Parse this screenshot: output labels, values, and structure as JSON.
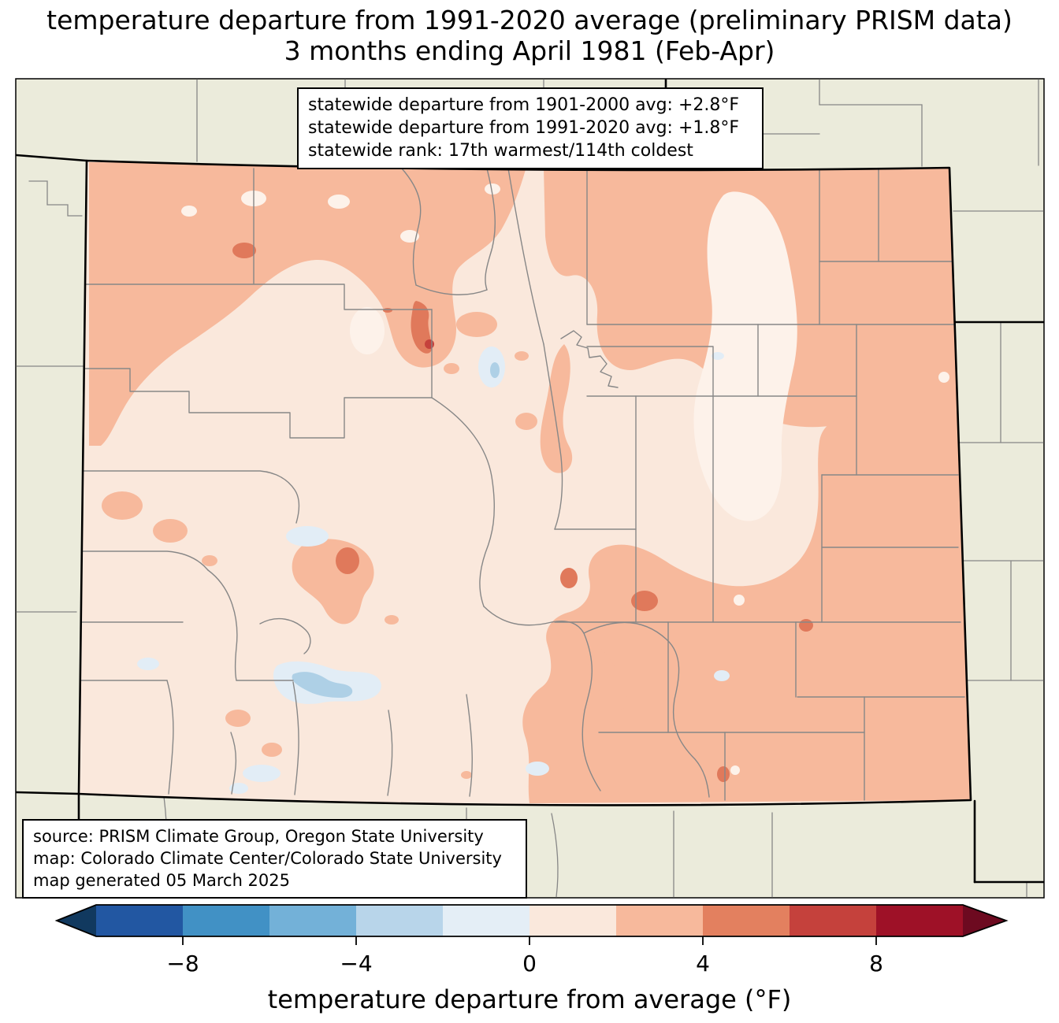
{
  "title": {
    "line1": "temperature departure from 1991-2020 average (preliminary PRISM data)",
    "line2": "3 months ending April 1981 (Feb-Apr)"
  },
  "stats_box": {
    "line1": "statewide departure from 1901-2000 avg: +2.8°F",
    "line2": "statewide departure from 1991-2020 avg: +1.8°F",
    "line3": "statewide rank: 17th warmest/114th coldest"
  },
  "source_box": {
    "line1": "source: PRISM Climate Group, Oregon State University",
    "line2": "map: Colorado Climate Center/Colorado State University",
    "line3": "map generated 05 March 2025"
  },
  "colorbar": {
    "label": "temperature departure from average (°F)",
    "ticks": [
      "−8",
      "−4",
      "0",
      "4",
      "8"
    ],
    "tick_values": [
      -8,
      -4,
      0,
      4,
      8
    ],
    "range": [
      -10,
      10
    ],
    "bin_width_degF": 2,
    "segment_colors": [
      "#2257a2",
      "#4191c5",
      "#73b1d8",
      "#b8d5ea",
      "#e4eef6",
      "#fae8dc",
      "#f7b99c",
      "#e3805f",
      "#c5413c",
      "#9e1127"
    ],
    "under_color": "#11395f",
    "over_color": "#6d0a20"
  },
  "map": {
    "region": "Colorado with county boundaries, surrounded by WY, NE, KS, OK, NM, AZ, UT",
    "value_classes_degF": {
      "-4 to -2": "#aed0e6",
      "-2 to 0": "#e2edf6",
      "0 to 2": "#fae8dc",
      "2 to 4": "#f7b99c",
      "4 to 6": "#e0795b",
      "6 to 8": "#c5413c"
    },
    "palette": {
      "bg": "#ebebdb",
      "base": "#fae8dc",
      "pale": "#fdf2ea",
      "salmon": "#f7b99c",
      "dorange": "#e0795b",
      "red": "#c5413c",
      "bluepale": "#e2edf6",
      "bluemed": "#aed0e6",
      "county": "#878787",
      "stateline": "#000000",
      "frame": "#000000"
    }
  }
}
